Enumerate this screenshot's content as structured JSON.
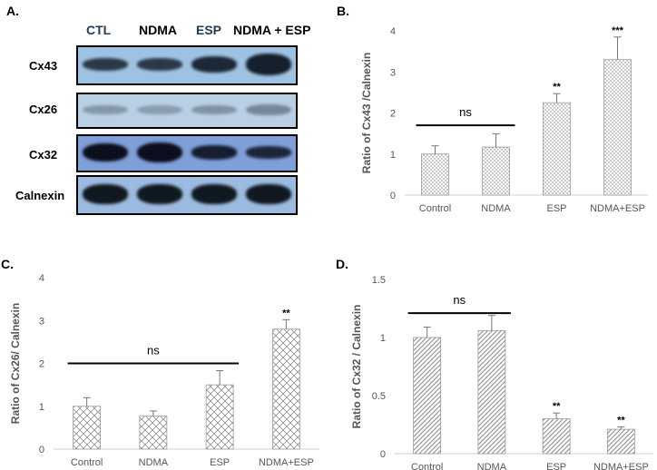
{
  "panels": {
    "a": "A.",
    "b": "B.",
    "c": "C.",
    "d": "D."
  },
  "western_blot": {
    "lanes": [
      {
        "label": "CTL",
        "color": "#1f3a5a"
      },
      {
        "label": "NDMA",
        "color": "#000000"
      },
      {
        "label": "ESP",
        "color": "#1f3a5a"
      },
      {
        "label": "NDMA + ESP",
        "color": "#000000"
      }
    ],
    "rows": [
      {
        "label": "Cx43",
        "bg": "#9ec3e2",
        "band": "#16202c",
        "intensity": [
          0.85,
          0.85,
          0.95,
          1.0
        ],
        "thickness": [
          0.35,
          0.35,
          0.45,
          0.6
        ]
      },
      {
        "label": "Cx26",
        "bg": "#b9cfe4",
        "band": "#5a6a7a",
        "intensity": [
          0.55,
          0.5,
          0.6,
          0.7
        ],
        "thickness": [
          0.3,
          0.3,
          0.3,
          0.35
        ]
      },
      {
        "label": "Cx32",
        "bg": "#7f9fd8",
        "band": "#0b0f1c",
        "intensity": [
          1.0,
          1.0,
          0.9,
          0.85
        ],
        "thickness": [
          0.55,
          0.6,
          0.4,
          0.35
        ]
      },
      {
        "label": "Calnexin",
        "bg": "#9dbbe0",
        "band": "#101820",
        "intensity": [
          1.0,
          1.0,
          1.0,
          1.0
        ],
        "thickness": [
          0.55,
          0.55,
          0.55,
          0.55
        ]
      }
    ]
  },
  "chart_data": [
    {
      "id": "B",
      "type": "bar",
      "categories": [
        "Control",
        "NDMA",
        "ESP",
        "NDMA+ESP"
      ],
      "values": [
        1.0,
        1.17,
        2.25,
        3.3
      ],
      "errors": [
        0.2,
        0.32,
        0.22,
        0.55
      ],
      "significance": [
        "",
        "",
        "**",
        "***"
      ],
      "ns_label": "ns",
      "ns_span": [
        "Control",
        "NDMA"
      ],
      "ns_y": 1.7,
      "ylabel": "Ratio of Cx43 /Calnexin",
      "ylim": [
        0,
        4
      ],
      "yticks": [
        "0",
        "1",
        "2",
        "3",
        "4"
      ],
      "tick_values": [
        0,
        1,
        2,
        3,
        4
      ],
      "pattern": "dots",
      "grid": false
    },
    {
      "id": "C",
      "type": "bar",
      "categories": [
        "Control",
        "NDMA",
        "ESP",
        "NDMA+ESP"
      ],
      "values": [
        1.0,
        0.77,
        1.5,
        2.8
      ],
      "errors": [
        0.2,
        0.12,
        0.33,
        0.22
      ],
      "significance": [
        "",
        "",
        "",
        "**"
      ],
      "ns_label": "ns",
      "ns_span": [
        "Control",
        "ESP"
      ],
      "ns_y": 2.0,
      "ylabel": "Ratio of Cx26/ Calnexin",
      "ylim": [
        0,
        4
      ],
      "yticks": [
        "0",
        "1",
        "2",
        "3",
        "4"
      ],
      "tick_values": [
        0,
        1,
        2,
        3,
        4
      ],
      "pattern": "diamonds",
      "grid": false
    },
    {
      "id": "D",
      "type": "bar",
      "categories": [
        "Control",
        "NDMA",
        "ESP",
        "NDMA+ESP"
      ],
      "values": [
        1.0,
        1.06,
        0.3,
        0.21
      ],
      "errors": [
        0.09,
        0.13,
        0.05,
        0.02
      ],
      "significance": [
        "",
        "",
        "**",
        "**"
      ],
      "ns_label": "ns",
      "ns_span": [
        "Control",
        "NDMA"
      ],
      "ns_y": 1.21,
      "ylabel": "Ratio of Cx32 / Calnexin",
      "ylim": [
        0,
        1.5
      ],
      "yticks": [
        "0",
        "0.5",
        "1",
        "1.5"
      ],
      "tick_values": [
        0,
        0.5,
        1,
        1.5
      ],
      "pattern": "stripes",
      "grid": false
    }
  ]
}
